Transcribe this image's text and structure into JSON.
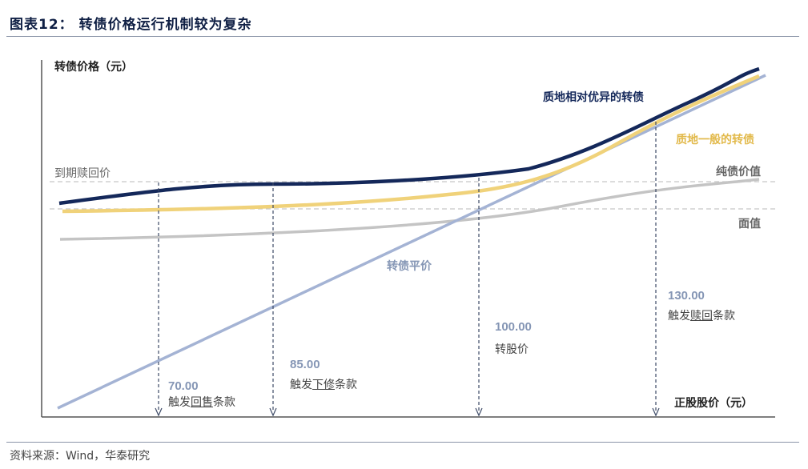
{
  "header": {
    "title": "图表12： 转债价格运行机制较为复杂"
  },
  "footer": {
    "source": "资料来源：Wind，华泰研究"
  },
  "axes": {
    "ylabel": "转债价格（元）",
    "xlabel": "正股股价（元）"
  },
  "reference_lines": {
    "redemption_price": "到期赎回价",
    "par_value": "面值"
  },
  "curves": {
    "high_quality": "质地相对优异的转债",
    "average_quality": "质地一般的转债",
    "bond_floor": "纯债价值",
    "parity": "转债平价"
  },
  "markers": [
    {
      "value": "70.00",
      "prefix": "触发",
      "key": "回售",
      "suffix": "条款"
    },
    {
      "value": "85.00",
      "prefix": "触发",
      "key": "下修",
      "suffix": "条款"
    },
    {
      "value": "100.00",
      "label": "转股价"
    },
    {
      "value": "130.00",
      "prefix": "触发",
      "key": "赎回",
      "suffix": "条款"
    }
  ],
  "colors": {
    "navy": "#14285a",
    "gold": "#f0d27a",
    "gray": "#bdbdbd",
    "blue": "#a4b3d4",
    "dashed_ref": "#c8c8c8",
    "axis": "#555555"
  }
}
